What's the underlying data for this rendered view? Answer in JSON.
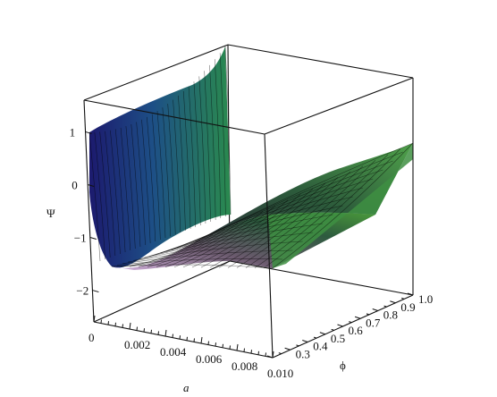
{
  "chart_data": {
    "type": "surface",
    "zlabel": "Ψ",
    "xlabel": "a",
    "ylabel": "ϕ",
    "x_ticks": [
      "0",
      "0.002",
      "0.004",
      "0.006",
      "0.008",
      "0.010"
    ],
    "y_ticks": [
      "0.3",
      "0.4",
      "0.5",
      "0.6",
      "0.7",
      "0.8",
      "0.9",
      "1.0"
    ],
    "z_ticks": [
      "1",
      "0",
      "−1",
      "−2"
    ],
    "xlim": [
      0,
      0.01
    ],
    "ylim": [
      0.2,
      1.0
    ],
    "zlim": [
      -2.6,
      1.6
    ],
    "grid": false,
    "colormap": [
      "#1c1a6e",
      "#1d5a86",
      "#1f8a6e",
      "#3fa24a",
      "#c9a3d6"
    ],
    "surface_samples": {
      "a": [
        0.0,
        0.0005,
        0.001,
        0.002,
        0.004,
        0.006,
        0.008,
        0.01
      ],
      "phi_at_low_a": [
        0.2,
        0.35,
        0.5,
        0.65,
        0.8,
        0.95
      ],
      "psi_front_edge_a0": [
        0.9,
        0.5,
        0.0,
        -0.6,
        -1.3,
        -1.9
      ],
      "psi_min_region": -1.9,
      "psi_back_corner_a_max": 1.6
    }
  }
}
